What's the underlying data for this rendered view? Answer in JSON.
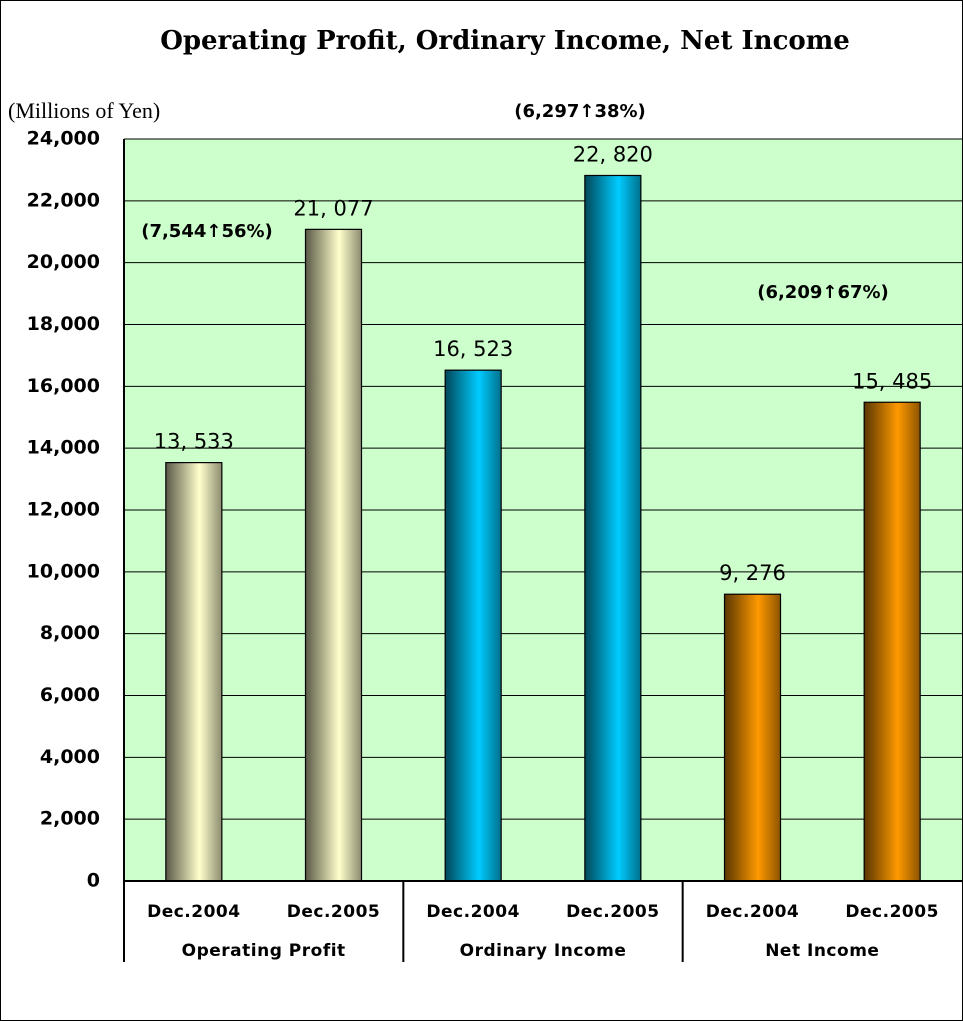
{
  "chart_data": {
    "type": "bar",
    "title": "Operating Profit, Ordinary Income, Net Income",
    "y_axis_label": "(Millions of Yen)",
    "periods": [
      "Dec.2004",
      "Dec.2005"
    ],
    "series": [
      {
        "name": "Operating Profit",
        "color": "#ffffcc",
        "values": [
          13533,
          21077
        ],
        "value_labels": [
          "13, 533",
          "21, 077"
        ]
      },
      {
        "name": "Ordinary Income",
        "color": "#00ccff",
        "values": [
          16523,
          22820
        ],
        "value_labels": [
          "16, 523",
          "22, 820"
        ]
      },
      {
        "name": "Net Income",
        "color": "#ff9900",
        "values": [
          9276,
          15485
        ],
        "value_labels": [
          "9, 276",
          "15, 485"
        ]
      }
    ],
    "annotations": [
      "(7,544↑56%)",
      "(6,297↑38%)",
      "(6,209↑67%)"
    ],
    "ylim": [
      0,
      24000
    ],
    "yticks": [
      0,
      {
        "value": 2000,
        "label": "2,000"
      },
      {
        "value": 4000,
        "label": "4,000"
      },
      {
        "value": 6000,
        "label": "6,000"
      },
      {
        "value": 8000,
        "label": "8,000"
      },
      {
        "value": 10000,
        "label": "10,000"
      },
      {
        "value": 12000,
        "label": "12,000"
      },
      {
        "value": 14000,
        "label": "14,000"
      },
      {
        "value": 16000,
        "label": "16,000"
      },
      {
        "value": 18000,
        "label": "18,000"
      },
      {
        "value": 20000,
        "label": "20,000"
      },
      {
        "value": 22000,
        "label": "22,000"
      },
      {
        "value": 24000,
        "label": "24,000"
      }
    ],
    "grid": true,
    "plot_background": "#ccffcc"
  }
}
